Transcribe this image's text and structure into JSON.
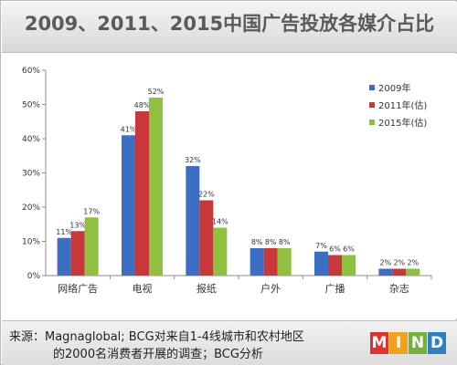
{
  "title": "2009、2011、2015中国广告投放各媒介占比",
  "footer": {
    "source_line1": "来源：Magnaglobal; BCG对来自1-4线城市和农村地区",
    "source_line2": "的2000名消费者开展的调查；BCG分析",
    "logo_letters": [
      "M",
      "I",
      "N",
      "D"
    ]
  },
  "colors": {
    "series_2009": "#3a6fc4",
    "series_2011": "#c8383a",
    "series_2015": "#8fc03f",
    "logo": [
      "#e0312f",
      "#f0a21b",
      "#74b23a",
      "#2f7fc5"
    ]
  },
  "chart_data": {
    "type": "bar",
    "categories": [
      "网络广告",
      "电视",
      "报纸",
      "户外",
      "广播",
      "杂志"
    ],
    "series": [
      {
        "name": "2009年",
        "values": [
          11,
          41,
          32,
          8,
          7,
          2
        ],
        "labels": [
          "11%",
          "41%",
          "32%",
          "8%",
          "7%",
          "2%"
        ]
      },
      {
        "name": "2011年(估)",
        "values": [
          13,
          48,
          22,
          8,
          6,
          2
        ],
        "labels": [
          "13%",
          "48%",
          "22%",
          "8%",
          "6%",
          "2%"
        ]
      },
      {
        "name": "2015年(估)",
        "values": [
          17,
          52,
          14,
          8,
          6,
          2
        ],
        "labels": [
          "17%",
          "52%",
          "14%",
          "8%",
          "6%",
          "2%"
        ]
      }
    ],
    "yticks": [
      "0%",
      "10%",
      "20%",
      "30%",
      "40%",
      "50%",
      "60%"
    ],
    "ylim": [
      0,
      60
    ],
    "grid": false,
    "legend": "top-right"
  }
}
